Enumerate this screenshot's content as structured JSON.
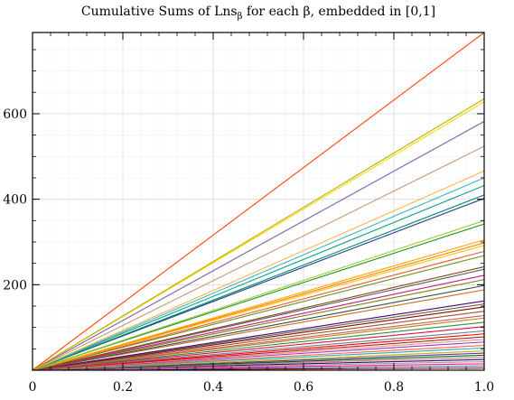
{
  "chart_data": {
    "type": "line",
    "title": "Cumulative Sums of Lns",
    "title_subscript": "β",
    "title_suffix": " for each β, embedded in [0,1]",
    "xlabel": "",
    "ylabel": "",
    "xlim": [
      0,
      1
    ],
    "ylim": [
      0,
      790
    ],
    "xticks": [
      "0",
      "0.2",
      "0.4",
      "0.6",
      "0.8",
      "1.0"
    ],
    "yticks": [
      "200",
      "400",
      "600"
    ],
    "grid": true,
    "legend": "none",
    "series_style": "straight lines from (0,0) to (1, final value)",
    "final_values": [
      790,
      635,
      628,
      582,
      524,
      466,
      450,
      432,
      410,
      402,
      350,
      342,
      305,
      298,
      292,
      278,
      268,
      242,
      236,
      222,
      212,
      198,
      188,
      162,
      155,
      148,
      138,
      128,
      122,
      112,
      102,
      92,
      85,
      78,
      72,
      66,
      58,
      52,
      45,
      40,
      35,
      30,
      25,
      20,
      15,
      10,
      5
    ],
    "colors": [
      "#ff4500",
      "#b5b500",
      "#ffd700",
      "#7b5fa8",
      "#c89878",
      "#ffb347",
      "#3cb7c3",
      "#10a080",
      "#008b6b",
      "#1e3d8f",
      "#9acd32",
      "#228b22",
      "#ffa500",
      "#ff7f00",
      "#ffc000",
      "#e85d2a",
      "#6b8e23",
      "#8b4513",
      "#5a5a5a",
      "#c71585",
      "#808000",
      "#2f4f4f",
      "#d2691e",
      "#4b0082",
      "#556b2f",
      "#8b0000",
      "#a0522d",
      "#cd5c5c",
      "#b8860b",
      "#2e8b57",
      "#dc143c",
      "#708090",
      "#ff0000",
      "#b22222",
      "#e9967a",
      "#9932cc",
      "#ff6347",
      "#20b2aa",
      "#daa520",
      "#483d8b",
      "#006400",
      "#db7093",
      "#191970",
      "#bc8f8f",
      "#ff1493",
      "#4682b4",
      "#800000"
    ]
  }
}
